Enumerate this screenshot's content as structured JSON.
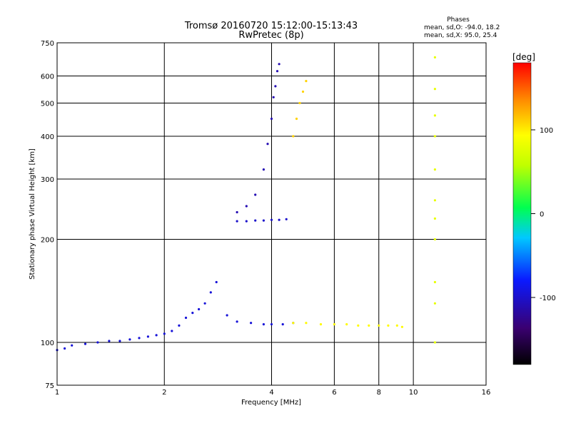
{
  "chart_data": {
    "type": "scatter",
    "title": "Tromsø 20160720 15:12:00-15:13:43",
    "subtitle": "RwPretec (8p)",
    "xlabel": "Frequency [MHz]",
    "ylabel": "Stationary phase Virtual Height [km]",
    "x_scale": "log",
    "y_scale": "log",
    "xlim": [
      1,
      16
    ],
    "ylim": [
      75,
      750
    ],
    "x_ticks": [
      1,
      2,
      4,
      6,
      8,
      10,
      16
    ],
    "y_ticks": [
      75,
      100,
      200,
      300,
      400,
      500,
      600,
      750
    ],
    "grid": true,
    "stats": {
      "heading": "Phases",
      "line_o": "mean, sd,O:  -94.0, 18.2",
      "line_x": "mean, sd,X:   95.0, 25.4"
    },
    "colorbar": {
      "label": "[deg]",
      "range": [
        -180,
        180
      ],
      "ticks": [
        100,
        0,
        -100
      ]
    },
    "traces": [
      {
        "name_hint": "low-band O trace",
        "phase": -95,
        "points": [
          [
            1.0,
            95
          ],
          [
            1.05,
            96
          ],
          [
            1.1,
            98
          ],
          [
            1.2,
            99
          ],
          [
            1.3,
            100
          ],
          [
            1.4,
            101
          ],
          [
            1.5,
            101
          ],
          [
            1.6,
            102
          ],
          [
            1.7,
            103
          ],
          [
            1.8,
            104
          ],
          [
            1.9,
            105
          ],
          [
            2.0,
            106
          ],
          [
            2.1,
            108
          ],
          [
            2.2,
            112
          ],
          [
            2.3,
            118
          ],
          [
            2.4,
            122
          ],
          [
            2.5,
            125
          ],
          [
            2.6,
            130
          ],
          [
            2.7,
            140
          ],
          [
            2.8,
            150
          ],
          [
            3.0,
            120
          ],
          [
            3.2,
            115
          ],
          [
            3.5,
            114
          ],
          [
            3.8,
            113
          ],
          [
            4.0,
            113
          ],
          [
            4.3,
            113
          ],
          [
            4.6,
            114
          ]
        ]
      },
      {
        "name_hint": "F-layer O trace",
        "phase": -110,
        "points": [
          [
            3.2,
            240
          ],
          [
            3.4,
            250
          ],
          [
            3.6,
            270
          ],
          [
            3.8,
            320
          ],
          [
            3.9,
            380
          ],
          [
            4.0,
            450
          ],
          [
            4.05,
            520
          ],
          [
            4.1,
            560
          ],
          [
            4.15,
            620
          ],
          [
            4.2,
            650
          ]
        ]
      },
      {
        "name_hint": "F-layer flat O",
        "phase": -100,
        "points": [
          [
            3.2,
            226
          ],
          [
            3.4,
            226
          ],
          [
            3.6,
            227
          ],
          [
            3.8,
            227
          ],
          [
            4.0,
            228
          ],
          [
            4.2,
            228
          ],
          [
            4.4,
            229
          ]
        ]
      },
      {
        "name_hint": "E-layer X trace",
        "phase": 95,
        "points": [
          [
            4.6,
            114
          ],
          [
            5.0,
            114
          ],
          [
            5.5,
            113
          ],
          [
            6.0,
            113
          ],
          [
            6.5,
            113
          ],
          [
            7.0,
            112
          ],
          [
            7.5,
            112
          ],
          [
            8.0,
            112
          ],
          [
            8.5,
            112
          ],
          [
            9.0,
            112
          ],
          [
            9.3,
            111
          ]
        ]
      },
      {
        "name_hint": "F-layer X trace",
        "phase": 110,
        "points": [
          [
            4.6,
            400
          ],
          [
            4.7,
            450
          ],
          [
            4.8,
            500
          ],
          [
            4.9,
            540
          ],
          [
            5.0,
            580
          ]
        ]
      },
      {
        "name_hint": "sporadic X column",
        "phase": 80,
        "points": [
          [
            11.5,
            680
          ],
          [
            11.5,
            550
          ],
          [
            11.5,
            460
          ],
          [
            11.5,
            400
          ],
          [
            11.5,
            320
          ],
          [
            11.5,
            260
          ],
          [
            11.5,
            230
          ],
          [
            11.5,
            200
          ],
          [
            11.5,
            150
          ],
          [
            11.5,
            130
          ],
          [
            11.5,
            100
          ]
        ]
      }
    ]
  }
}
